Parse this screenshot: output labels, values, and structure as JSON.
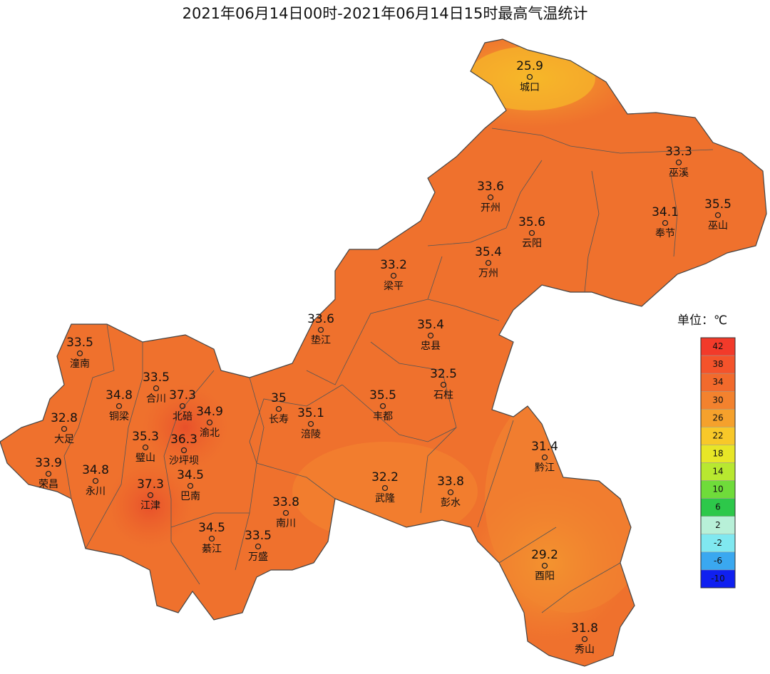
{
  "title": "2021年06月14日00时-2021年06月14日15时最高气温统计",
  "legend": {
    "title": "单位：℃",
    "levels": [
      42,
      38,
      34,
      30,
      26,
      22,
      18,
      14,
      10,
      6,
      2,
      -2,
      -6,
      -10
    ],
    "colors": [
      "#f23a2a",
      "#f4532b",
      "#f26a2c",
      "#f3822e",
      "#f5a12c",
      "#f8c829",
      "#e8e627",
      "#b8e830",
      "#6fdc3a",
      "#2dc84a",
      "#b8f0d8",
      "#80e8f0",
      "#3aa8f0",
      "#1020f0"
    ]
  },
  "stations": [
    {
      "name": "城口",
      "value": 25.9
    },
    {
      "name": "巫溪",
      "value": 33.3
    },
    {
      "name": "开州",
      "value": 33.6
    },
    {
      "name": "巫山",
      "value": 35.5
    },
    {
      "name": "奉节",
      "value": 34.1
    },
    {
      "name": "云阳",
      "value": 35.6
    },
    {
      "name": "万州",
      "value": 35.4
    },
    {
      "name": "梁平",
      "value": 33.2
    },
    {
      "name": "垫江",
      "value": 33.6
    },
    {
      "name": "忠县",
      "value": 35.4
    },
    {
      "name": "潼南",
      "value": 33.5
    },
    {
      "name": "石柱",
      "value": 32.5
    },
    {
      "name": "合川",
      "value": 33.5
    },
    {
      "name": "北碚",
      "value": 37.3
    },
    {
      "name": "铜梁",
      "value": 34.8
    },
    {
      "name": "长寿",
      "value": 35
    },
    {
      "name": "渝北",
      "value": 34.9
    },
    {
      "name": "涪陵",
      "value": 35.1
    },
    {
      "name": "丰都",
      "value": 35.5
    },
    {
      "name": "大足",
      "value": 32.8
    },
    {
      "name": "璧山",
      "value": 35.3
    },
    {
      "name": "沙坪坝",
      "value": 36.3
    },
    {
      "name": "荣昌",
      "value": 33.9
    },
    {
      "name": "永川",
      "value": 34.8
    },
    {
      "name": "巴南",
      "value": 34.5
    },
    {
      "name": "江津",
      "value": 37.3
    },
    {
      "name": "武隆",
      "value": 32.2
    },
    {
      "name": "彭水",
      "value": 33.8
    },
    {
      "name": "黔江",
      "value": 31.4
    },
    {
      "name": "南川",
      "value": 33.8
    },
    {
      "name": "綦江",
      "value": 34.5
    },
    {
      "name": "万盛",
      "value": 33.5
    },
    {
      "name": "酉阳",
      "value": 29.2
    },
    {
      "name": "秀山",
      "value": 31.8
    }
  ]
}
